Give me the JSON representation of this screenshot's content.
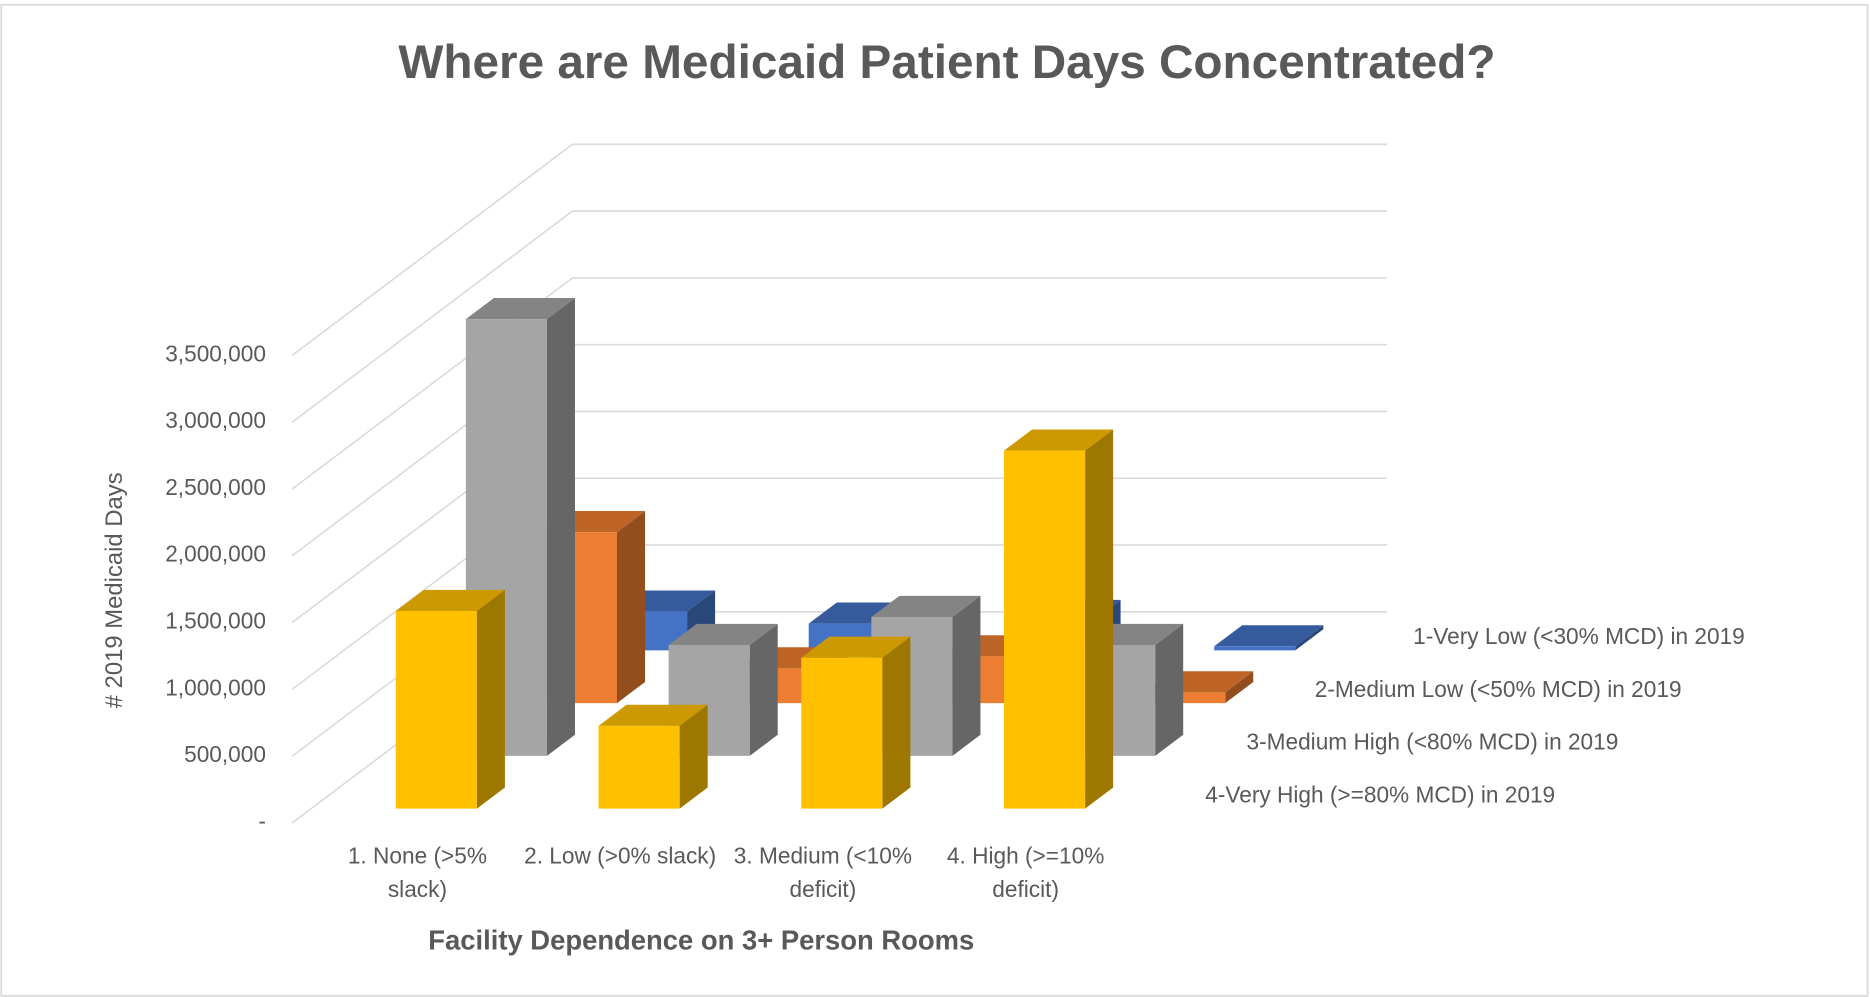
{
  "chart_data": {
    "type": "bar3d",
    "title": "Where are Medicaid Patient Days Concentrated?",
    "x_label": "Facility Dependence on 3+ Person Rooms",
    "y_label": "# 2019 Medicaid Days",
    "categories": [
      "1. None (>5% slack)",
      "2. Low   (>0% slack)",
      "3. Medium (<10% deficit)",
      "4. High (>=10% deficit)"
    ],
    "series": [
      {
        "name": "1-Very Low (<30% MCD) in 2019",
        "color": "#4472C4",
        "values": [
          290000,
          200000,
          220000,
          30000
        ]
      },
      {
        "name": "2-Medium Low (<50% MCD) in 2019",
        "color": "#ED7D31",
        "values": [
          1280000,
          260000,
          350000,
          80000
        ]
      },
      {
        "name": "3-Medium High (<80% MCD) in 2019",
        "color": "#A5A5A5",
        "values": [
          3270000,
          830000,
          1040000,
          830000
        ]
      },
      {
        "name": "4-Very High (>=80% MCD) in 2019",
        "color": "#FFC000",
        "values": [
          1480000,
          620000,
          1130000,
          2680000
        ]
      }
    ],
    "ylim": [
      0,
      3500000
    ],
    "yticks": [
      {
        "value": 0,
        "label": "-"
      },
      {
        "value": 500000,
        "label": "500,000"
      },
      {
        "value": 1000000,
        "label": "1,000,000"
      },
      {
        "value": 1500000,
        "label": "1,500,000"
      },
      {
        "value": 2000000,
        "label": "2,000,000"
      },
      {
        "value": 2500000,
        "label": "2,500,000"
      },
      {
        "value": 3000000,
        "label": "3,000,000"
      },
      {
        "value": 3500000,
        "label": "3,500,000"
      }
    ],
    "grid": true
  }
}
